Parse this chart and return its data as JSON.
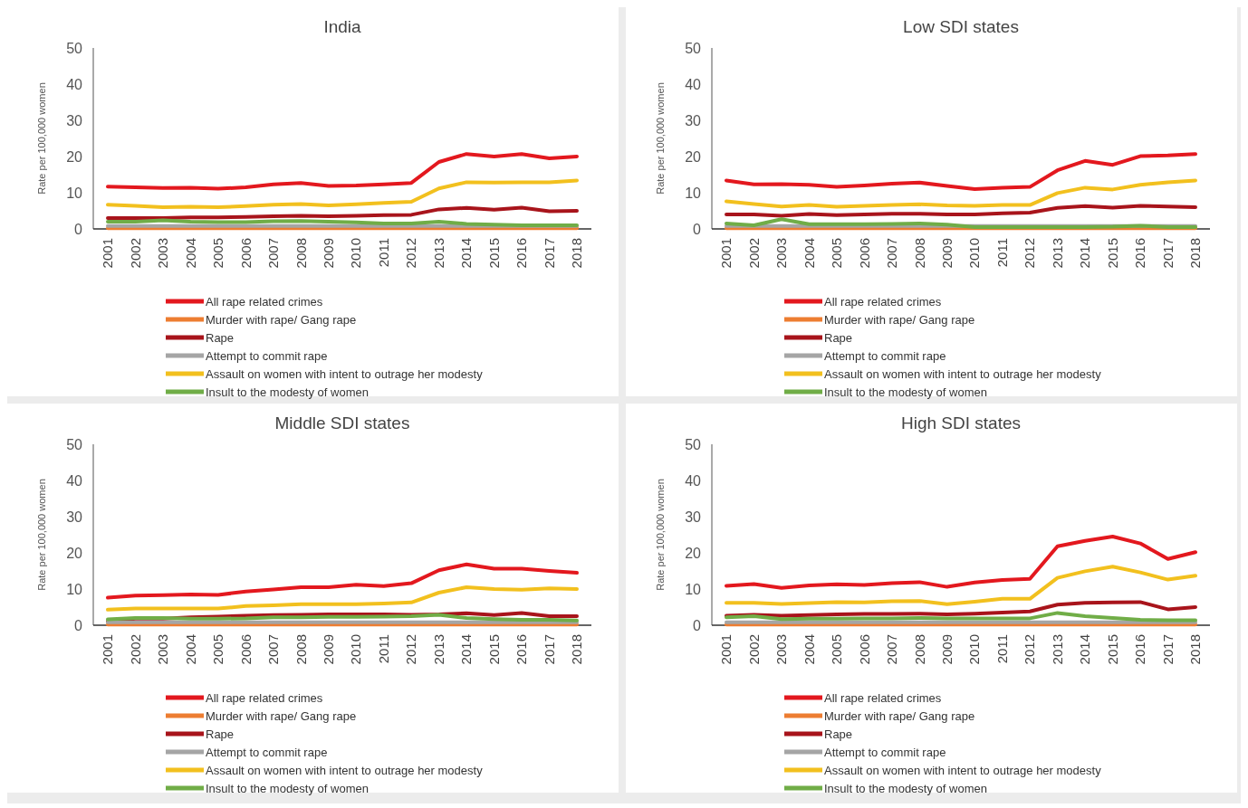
{
  "chart_data": [
    {
      "type": "line",
      "title": "India",
      "ylabel": "Rate per 100,000 women",
      "categories": [
        "2001",
        "2002",
        "2003",
        "2004",
        "2005",
        "2006",
        "2007",
        "2008",
        "2009",
        "2010",
        "2011",
        "2012",
        "2013",
        "2014",
        "2015",
        "2016",
        "2017",
        "2018"
      ],
      "ylim": [
        0,
        50
      ],
      "yticks": [
        0,
        10,
        20,
        30,
        40,
        50
      ],
      "legend": "bottom",
      "series": [
        {
          "name": "All rape related crimes",
          "color": "#e3181e",
          "values": [
            11.7,
            11.5,
            11.3,
            11.4,
            11.1,
            11.5,
            12.3,
            12.7,
            11.9,
            12,
            12.3,
            12.7,
            18.5,
            20.7,
            20,
            20.7,
            19.5,
            20
          ]
        },
        {
          "name": "Murder with rape/ Gang rape",
          "color": "#ed7d31",
          "values": [
            0.2,
            0.2,
            0.2,
            0.2,
            0.2,
            0.2,
            0.2,
            0.2,
            0.2,
            0.2,
            0.2,
            0.2,
            0.2,
            0.2,
            0.2,
            0.2,
            0.2,
            0.2
          ]
        },
        {
          "name": "Rape",
          "color": "#a8141b",
          "values": [
            3,
            3,
            3,
            3.2,
            3.2,
            3.3,
            3.5,
            3.6,
            3.5,
            3.6,
            3.8,
            3.9,
            5.4,
            5.8,
            5.3,
            5.9,
            4.9,
            5
          ]
        },
        {
          "name": "Attempt to commit rape",
          "color": "#a5a5a5",
          "values": [
            0.8,
            0.8,
            0.8,
            0.8,
            0.8,
            0.8,
            0.8,
            0.8,
            0.8,
            0.8,
            0.8,
            0.8,
            0.8,
            0.8,
            0.8,
            0.8,
            0.8,
            0.8
          ]
        },
        {
          "name": "Assault on women with intent to outrage her modesty",
          "color": "#f2c01e",
          "values": [
            6.7,
            6.4,
            6,
            6.1,
            6,
            6.3,
            6.7,
            6.9,
            6.5,
            6.8,
            7.2,
            7.5,
            11.2,
            12.9,
            12.8,
            12.9,
            12.9,
            13.4
          ]
        },
        {
          "name": "Insult to the modesty of women",
          "color": "#70ad47",
          "values": [
            2,
            2,
            2.4,
            2,
            1.9,
            1.9,
            2.1,
            2.2,
            2,
            1.8,
            1.5,
            1.5,
            2,
            1.4,
            1.2,
            1,
            1,
            1
          ]
        }
      ]
    },
    {
      "type": "line",
      "title": "Low SDI states",
      "ylabel": "Rate per 100,000 women",
      "categories": [
        "2001",
        "2002",
        "2003",
        "2004",
        "2005",
        "2006",
        "2007",
        "2008",
        "2009",
        "2010",
        "2011",
        "2012",
        "2013",
        "2014",
        "2015",
        "2016",
        "2017",
        "2018"
      ],
      "ylim": [
        0,
        50
      ],
      "yticks": [
        0,
        10,
        20,
        30,
        40,
        50
      ],
      "legend": "bottom",
      "series": [
        {
          "name": "All rape related crimes",
          "color": "#e3181e",
          "values": [
            13.4,
            12.3,
            12.4,
            12.2,
            11.6,
            12,
            12.5,
            12.8,
            11.9,
            11,
            11.4,
            11.6,
            16.2,
            18.8,
            17.7,
            20.1,
            20.3,
            20.7
          ]
        },
        {
          "name": "Murder with rape/ Gang rape",
          "color": "#ed7d31",
          "values": [
            0.2,
            0.2,
            0.2,
            0.2,
            0.2,
            0.2,
            0.2,
            0.2,
            0.2,
            0.2,
            0.2,
            0.2,
            0.2,
            0.2,
            0.2,
            0.2,
            0.2,
            0.2
          ]
        },
        {
          "name": "Rape",
          "color": "#a8141b",
          "values": [
            4,
            4,
            3.6,
            4.1,
            3.8,
            4,
            4.2,
            4.2,
            4,
            4,
            4.3,
            4.5,
            5.8,
            6.3,
            5.9,
            6.4,
            6.2,
            6
          ]
        },
        {
          "name": "Attempt to commit rape",
          "color": "#a5a5a5",
          "values": [
            0.8,
            0.8,
            0.8,
            0.8,
            0.8,
            0.8,
            0.8,
            0.8,
            0.8,
            0.8,
            0.8,
            0.8,
            0.8,
            0.8,
            0.8,
            0.8,
            0.8,
            0.8
          ]
        },
        {
          "name": "Assault on women with intent to outrage her modesty",
          "color": "#f2c01e",
          "values": [
            7.6,
            6.9,
            6.2,
            6.6,
            6.1,
            6.4,
            6.6,
            6.8,
            6.5,
            6.4,
            6.6,
            6.6,
            9.9,
            11.4,
            10.9,
            12.2,
            12.9,
            13.4
          ]
        },
        {
          "name": "Insult to the modesty of women",
          "color": "#70ad47",
          "values": [
            1.5,
            1,
            2.7,
            1.3,
            1.3,
            1.3,
            1.4,
            1.5,
            1.2,
            0.5,
            0.5,
            0.5,
            0.5,
            0.5,
            0.6,
            0.9,
            0.5,
            0.5
          ]
        }
      ]
    },
    {
      "type": "line",
      "title": "Middle SDI states",
      "ylabel": "Rate per 100,000 women",
      "categories": [
        "2001",
        "2002",
        "2003",
        "2004",
        "2005",
        "2006",
        "2007",
        "2008",
        "2009",
        "2010",
        "2011",
        "2012",
        "2013",
        "2014",
        "2015",
        "2016",
        "2017",
        "2018"
      ],
      "ylim": [
        0,
        50
      ],
      "yticks": [
        0,
        10,
        20,
        30,
        40,
        50
      ],
      "legend": "bottom",
      "series": [
        {
          "name": "All rape related crimes",
          "color": "#e3181e",
          "values": [
            7.6,
            8.2,
            8.3,
            8.5,
            8.4,
            9.3,
            9.9,
            10.5,
            10.5,
            11.2,
            10.8,
            11.6,
            15.2,
            16.8,
            15.6,
            15.6,
            15,
            14.5
          ]
        },
        {
          "name": "Murder with rape/ Gang rape",
          "color": "#ed7d31",
          "values": [
            0.2,
            0.2,
            0.2,
            0.2,
            0.2,
            0.2,
            0.2,
            0.2,
            0.2,
            0.2,
            0.2,
            0.2,
            0.2,
            0.2,
            0.2,
            0.2,
            0.2,
            0.2
          ]
        },
        {
          "name": "Rape",
          "color": "#a8141b",
          "values": [
            1,
            1.8,
            1.8,
            2.2,
            2.4,
            2.6,
            2.8,
            2.9,
            3,
            3,
            3,
            2.9,
            3,
            3.3,
            2.8,
            3.4,
            2.5,
            2.5
          ]
        },
        {
          "name": "Attempt to commit rape",
          "color": "#a5a5a5",
          "values": [
            0.8,
            0.8,
            0.8,
            0.8,
            0.8,
            0.8,
            0.8,
            0.8,
            0.8,
            0.8,
            0.8,
            0.8,
            0.8,
            0.8,
            0.8,
            0.8,
            0.8,
            0.8
          ]
        },
        {
          "name": "Assault on women with intent to outrage her modesty",
          "color": "#f2c01e",
          "values": [
            4.3,
            4.6,
            4.6,
            4.6,
            4.6,
            5.3,
            5.5,
            5.8,
            5.8,
            5.8,
            6,
            6.3,
            9,
            10.5,
            10,
            9.8,
            10.2,
            10
          ]
        },
        {
          "name": "Insult to the modesty of women",
          "color": "#70ad47",
          "values": [
            1.6,
            2,
            2,
            1.8,
            1.8,
            1.9,
            2.2,
            2.2,
            2.3,
            2.3,
            2.4,
            2.5,
            2.9,
            2,
            1.7,
            1.5,
            1.5,
            1.3
          ]
        }
      ]
    },
    {
      "type": "line",
      "title": "High SDI states",
      "ylabel": "Rate per 100,000 women",
      "categories": [
        "2001",
        "2002",
        "2003",
        "2004",
        "2005",
        "2006",
        "2007",
        "2008",
        "2009",
        "2010",
        "2011",
        "2012",
        "2013",
        "2014",
        "2015",
        "2016",
        "2017",
        "2018"
      ],
      "ylim": [
        0,
        50
      ],
      "yticks": [
        0,
        10,
        20,
        30,
        40,
        50
      ],
      "legend": "bottom",
      "series": [
        {
          "name": "All rape related crimes",
          "color": "#e3181e",
          "values": [
            10.9,
            11.4,
            10.3,
            11,
            11.3,
            11.1,
            11.6,
            11.9,
            10.6,
            11.8,
            12.5,
            12.8,
            21.8,
            23.3,
            24.5,
            22.6,
            18.3,
            20.2
          ]
        },
        {
          "name": "Murder with rape/ Gang rape",
          "color": "#ed7d31",
          "values": [
            0.2,
            0.2,
            0.2,
            0.2,
            0.2,
            0.2,
            0.2,
            0.2,
            0.2,
            0.2,
            0.2,
            0.2,
            0.2,
            0.2,
            0.2,
            0.2,
            0.2,
            0.2
          ]
        },
        {
          "name": "Rape",
          "color": "#a8141b",
          "values": [
            2.6,
            2.9,
            2.6,
            2.8,
            3,
            3.1,
            3.1,
            3.2,
            3,
            3.2,
            3.5,
            3.8,
            5.7,
            6.2,
            6.3,
            6.4,
            4.4,
            5
          ]
        },
        {
          "name": "Attempt to commit rape",
          "color": "#a5a5a5",
          "values": [
            0.8,
            0.8,
            0.8,
            0.8,
            0.8,
            0.8,
            0.8,
            0.8,
            0.8,
            0.8,
            0.8,
            0.8,
            0.8,
            0.8,
            0.8,
            0.8,
            0.8,
            0.8
          ]
        },
        {
          "name": "Assault on women with intent to outrage her modesty",
          "color": "#f2c01e",
          "values": [
            6.2,
            6.2,
            5.9,
            6.1,
            6.4,
            6.3,
            6.6,
            6.7,
            5.8,
            6.5,
            7.3,
            7.3,
            13.1,
            14.9,
            16.2,
            14.6,
            12.6,
            13.7
          ]
        },
        {
          "name": "Insult to the modesty of women",
          "color": "#70ad47",
          "values": [
            2.2,
            2.5,
            1.7,
            1.8,
            1.8,
            1.9,
            1.9,
            2,
            1.9,
            1.9,
            1.9,
            1.9,
            3.4,
            2.5,
            2,
            1.5,
            1.4,
            1.4
          ]
        }
      ]
    }
  ]
}
